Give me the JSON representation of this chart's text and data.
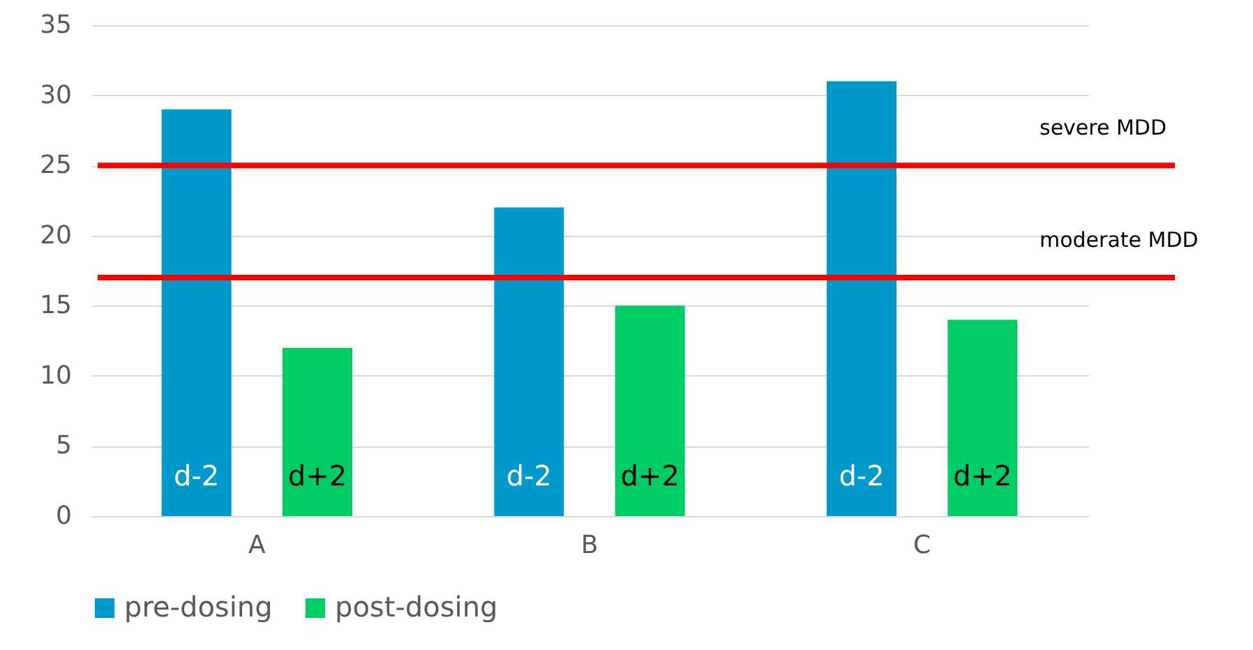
{
  "chart_data": {
    "type": "bar",
    "categories": [
      "A",
      "B",
      "C"
    ],
    "series": [
      {
        "name": "pre-dosing",
        "color": "#0099cc",
        "values": [
          29,
          22,
          31
        ],
        "value_labels": [
          "d-2",
          "d-2",
          "d-2"
        ]
      },
      {
        "name": "post-dosing",
        "color": "#00cc66",
        "values": [
          12,
          15,
          14
        ],
        "value_labels": [
          "d+2",
          "d+2",
          "d+2"
        ]
      }
    ],
    "ylim": [
      0,
      35
    ],
    "yticks": [
      0,
      5,
      10,
      15,
      20,
      25,
      30,
      35
    ],
    "grid": "y",
    "legend": "bottom",
    "ref_lines": [
      {
        "axis": "y",
        "value": 25,
        "label": "severe MDD",
        "color": "#ff0000"
      },
      {
        "axis": "y",
        "value": 17,
        "label": "moderate  MDD",
        "color": "#ff0000"
      }
    ]
  }
}
